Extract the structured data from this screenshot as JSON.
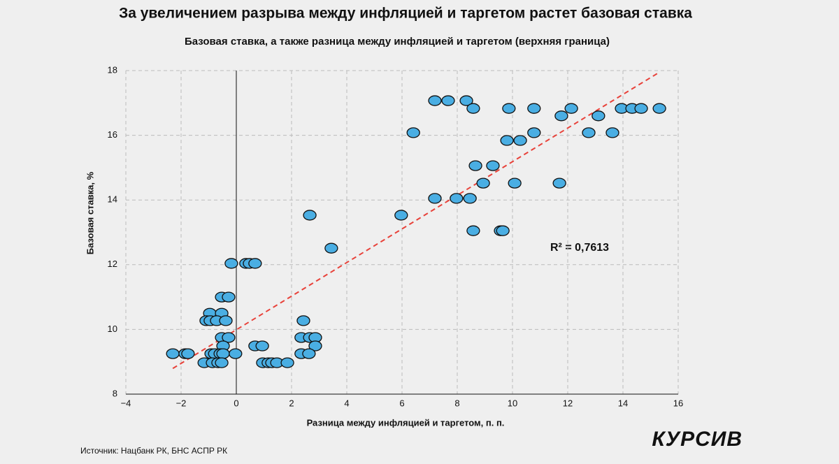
{
  "chart_data": {
    "type": "scatter",
    "title": "За увеличением разрыва между инфляцией и таргетом растет базовая ставка",
    "subtitle": "Базовая ставка, а также разница между инфляцией и таргетом (верхняя граница)",
    "x_label": "Разница между инфляцией и таргетом, п. п.",
    "y_label": "Базовая ставка, %",
    "source": "Источник: Нацбанк РК, БНС АСПР РК",
    "logo": "КУРСИВ",
    "annotation": "R² = 0,7613",
    "trendline": true,
    "trendline_color": "#e8423a",
    "grid": true,
    "xlim": [
      -4,
      16
    ],
    "ylim": [
      8,
      18
    ],
    "xticks": [
      {
        "value": -4,
        "label": "−4"
      },
      {
        "value": -2,
        "label": "−2"
      },
      0,
      2,
      4,
      6,
      8,
      10,
      12,
      14,
      16
    ],
    "yticks": [
      8,
      10,
      12,
      14,
      16,
      18
    ],
    "series": [
      {
        "color": "#4aaee3",
        "x": [
          7.19,
          7.67,
          8.33,
          8.58,
          9.87,
          10.78,
          12.13,
          13.95,
          14.33,
          14.66,
          15.32,
          11.77,
          13.11,
          6.41,
          10.78,
          12.76,
          13.62,
          9.8,
          10.28,
          8.66,
          9.29,
          8.94,
          10.08,
          11.7,
          7.19,
          7.97,
          8.46,
          2.66,
          5.97,
          8.58,
          9.57,
          9.65,
          3.44,
          -0.18,
          0.35,
          0.48,
          0.68,
          -0.53,
          -0.28,
          -0.96,
          -0.53,
          -1.09,
          -0.94,
          -0.71,
          -0.38,
          2.43,
          -0.53,
          -0.28,
          2.35,
          2.66,
          2.86,
          -0.48,
          0.68,
          0.94,
          2.86,
          -2.3,
          -1.85,
          -1.75,
          -0.91,
          -0.78,
          -0.58,
          -0.48,
          -0.03,
          2.35,
          2.63,
          -1.16,
          -0.86,
          -0.66,
          -0.53,
          0.96,
          1.16,
          1.29,
          1.47,
          1.85
        ],
        "values": [
          17.07,
          17.07,
          17.07,
          16.83,
          16.83,
          16.83,
          16.83,
          16.83,
          16.83,
          16.83,
          16.83,
          16.6,
          16.6,
          16.08,
          16.08,
          16.08,
          16.08,
          15.84,
          15.84,
          15.06,
          15.06,
          14.52,
          14.52,
          14.52,
          14.05,
          14.05,
          14.05,
          13.53,
          13.53,
          13.05,
          13.05,
          13.05,
          12.51,
          12.04,
          12.04,
          12.04,
          12.04,
          11.0,
          11.0,
          10.5,
          10.5,
          10.27,
          10.27,
          10.27,
          10.27,
          10.27,
          9.75,
          9.75,
          9.75,
          9.75,
          9.75,
          9.49,
          9.49,
          9.49,
          9.49,
          9.25,
          9.25,
          9.25,
          9.25,
          9.25,
          9.25,
          9.25,
          9.25,
          9.25,
          9.25,
          8.97,
          8.97,
          8.97,
          8.97,
          8.97,
          8.97,
          8.97,
          8.97,
          8.97
        ]
      }
    ]
  }
}
